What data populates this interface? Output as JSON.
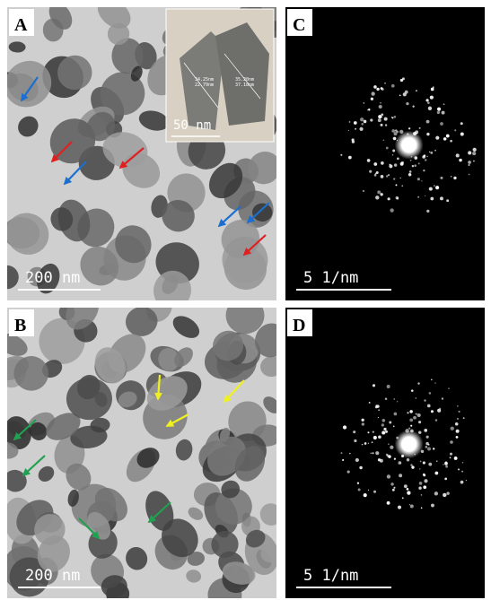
{
  "panels": [
    {
      "label": "A",
      "scale_bar": "200 nm",
      "inset": {
        "scale_bar": "50 nm",
        "measurements": [
          "34.25nm",
          "22.79nm",
          "35.20nm",
          "37.18nm"
        ]
      }
    },
    {
      "label": "C",
      "scale_bar": "5 1/nm"
    },
    {
      "label": "B",
      "scale_bar": "200 nm"
    },
    {
      "label": "D",
      "scale_bar": "5 1/nm"
    }
  ]
}
